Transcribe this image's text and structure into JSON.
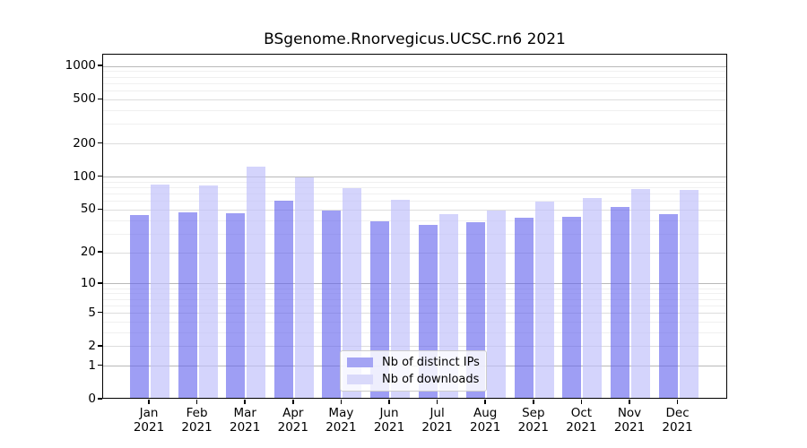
{
  "title": "BSgenome.Rnorvegicus.UCSC.rn6 2021",
  "colors": {
    "bar_distinct_ips": "#a4a4f4",
    "bar_downloads": "#d9d9fa",
    "bar_distinct_ips_fill": "rgba(98,98,238,0.62)",
    "bar_downloads_fill": "rgba(192,192,250,0.68)",
    "grid_decade": "#b9b9b9",
    "grid_sub": "#dddddd",
    "grid_minor": "#f0f0f0",
    "axis": "#000000",
    "legend_border": "#cccccc"
  },
  "chart_data": {
    "type": "bar",
    "title": "BSgenome.Rnorvegicus.UCSC.rn6 2021",
    "categories": [
      "Jan",
      "Feb",
      "Mar",
      "Apr",
      "May",
      "Jun",
      "Jul",
      "Aug",
      "Sep",
      "Oct",
      "Nov",
      "Dec"
    ],
    "year_label": "2021",
    "series": [
      {
        "name": "Nb of distinct IPs",
        "values": [
          43,
          46,
          45,
          59,
          48,
          38,
          35,
          37,
          41,
          42,
          51,
          44
        ]
      },
      {
        "name": "Nb of downloads",
        "values": [
          82,
          81,
          119,
          95,
          76,
          60,
          44,
          48,
          58,
          62,
          75,
          73
        ]
      }
    ],
    "yscale": "log1p",
    "ylim": [
      0,
      1276
    ],
    "yticks": [
      0,
      1,
      2,
      5,
      10,
      20,
      50,
      100,
      200,
      500,
      1000
    ],
    "grid_decade": [
      1,
      10,
      100,
      1000
    ],
    "grid_sub": [
      2,
      5,
      20,
      50,
      200,
      500
    ],
    "grid_minor": [
      3,
      4,
      6,
      7,
      8,
      9,
      30,
      40,
      60,
      70,
      80,
      90,
      300,
      400,
      600,
      700,
      800,
      900
    ],
    "legend_position": "lower center",
    "grid": "on",
    "xlabel": "",
    "ylabel": ""
  }
}
